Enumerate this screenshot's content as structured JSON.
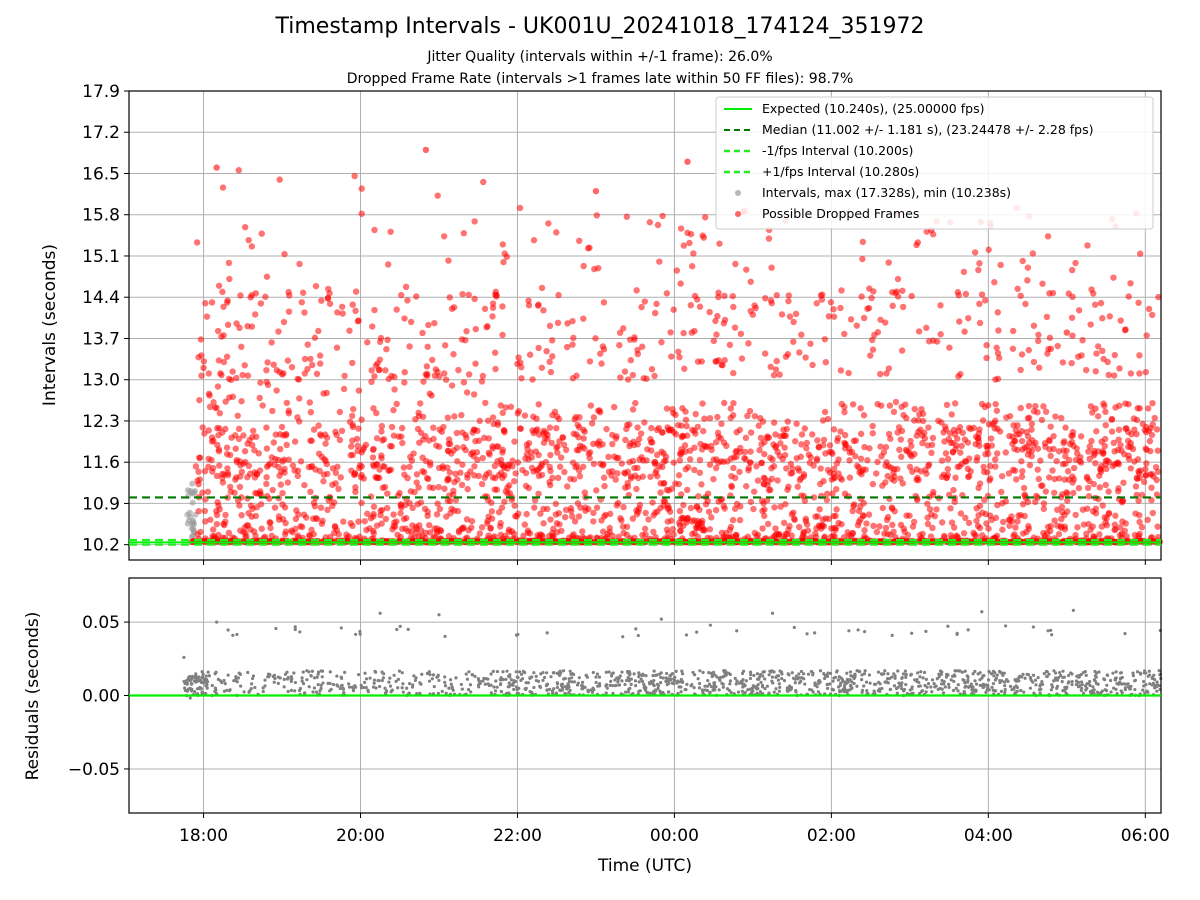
{
  "title": "Timestamp Intervals - UK001U_20241018_174124_351972",
  "subtitle1": "Jitter Quality (intervals within +/-1 frame): 26.0%",
  "subtitle2": "Dropped Frame Rate (intervals >1 frames late within 50 FF files): 98.7%",
  "colors": {
    "expected": "#00ee00",
    "median": "#007700",
    "jitter_bounds": "#22ee22",
    "intervals": "#999999",
    "dropped": "#ff0000",
    "residuals": "#808080",
    "grid": "#b0b0b0"
  },
  "chart_data": [
    {
      "type": "scatter",
      "xlabel": "",
      "ylabel": "Intervals (seconds)",
      "ylim": [
        9.94,
        17.9
      ],
      "xlim_hours": [
        17.05,
        30.2
      ],
      "grid": true,
      "legend_position": "top-right",
      "yticks": [
        "10.2",
        "10.9",
        "11.6",
        "12.3",
        "13.0",
        "13.7",
        "14.4",
        "15.1",
        "15.8",
        "16.5",
        "17.2",
        "17.9"
      ],
      "hlines": [
        {
          "name": "Expected (10.240s), (25.00000 fps)",
          "y": 10.24,
          "style": "solid",
          "color": "#00ee00"
        },
        {
          "name": "Median (11.002 +/- 1.181 s), (23.24478 +/- 2.28 fps)",
          "y": 11.002,
          "style": "dashed",
          "color": "#007700"
        },
        {
          "name": "-1/fps Interval (10.200s)",
          "y": 10.2,
          "style": "dashed",
          "color": "#22ee22"
        },
        {
          "name": "+1/fps Interval (10.280s)",
          "y": 10.28,
          "style": "dashed",
          "color": "#22ee22"
        }
      ],
      "series": [
        {
          "name": "Intervals, max (17.328s), min (10.238s)",
          "color": "#999999",
          "marker": "circle"
        },
        {
          "name": "Possible Dropped Frames",
          "color": "#ff0000",
          "marker": "circle"
        }
      ],
      "legend": [
        "Expected (10.240s), (25.00000 fps)",
        "Median (11.002 +/- 1.181 s), (23.24478 +/- 2.28 fps)",
        "-1/fps Interval (10.200s)",
        "+1/fps Interval (10.280s)",
        "Intervals, max (17.328s), min (10.238s)",
        "Possible Dropped Frames"
      ],
      "notable_points": [
        {
          "x": "18:10",
          "y": 16.6
        },
        {
          "x": "18:00",
          "y": 13.2
        },
        {
          "x": "20:50",
          "y": 16.9
        },
        {
          "x": "23:00",
          "y": 16.2
        },
        {
          "x": "00:10",
          "y": 16.7
        },
        {
          "x": "01:25",
          "y": 15.7
        },
        {
          "x": "05:00",
          "y": 13.8
        }
      ]
    },
    {
      "type": "scatter",
      "xlabel": "Time (UTC)",
      "ylabel": "Residuals (seconds)",
      "ylim": [
        -0.08,
        0.08
      ],
      "xlim_hours": [
        17.05,
        30.2
      ],
      "grid": true,
      "yticks": [
        "−0.05",
        "0.00",
        "0.05"
      ],
      "xticks": [
        "18:00",
        "20:00",
        "22:00",
        "00:00",
        "02:00",
        "04:00",
        "06:00"
      ],
      "hlines": [
        {
          "y": 0.0,
          "style": "solid",
          "color": "#00ee00"
        }
      ],
      "series": [
        {
          "name": "residuals",
          "color": "#808080",
          "marker": "dot"
        }
      ],
      "notable_points": [
        {
          "x": "17:45",
          "y": 0.026
        },
        {
          "x": "18:10",
          "y": 0.05
        },
        {
          "x": "20:15",
          "y": 0.056
        },
        {
          "x": "21:00",
          "y": 0.055
        },
        {
          "x": "23:50",
          "y": 0.052
        },
        {
          "x": "01:15",
          "y": 0.056
        },
        {
          "x": "03:55",
          "y": 0.057
        },
        {
          "x": "05:05",
          "y": 0.058
        }
      ]
    }
  ]
}
